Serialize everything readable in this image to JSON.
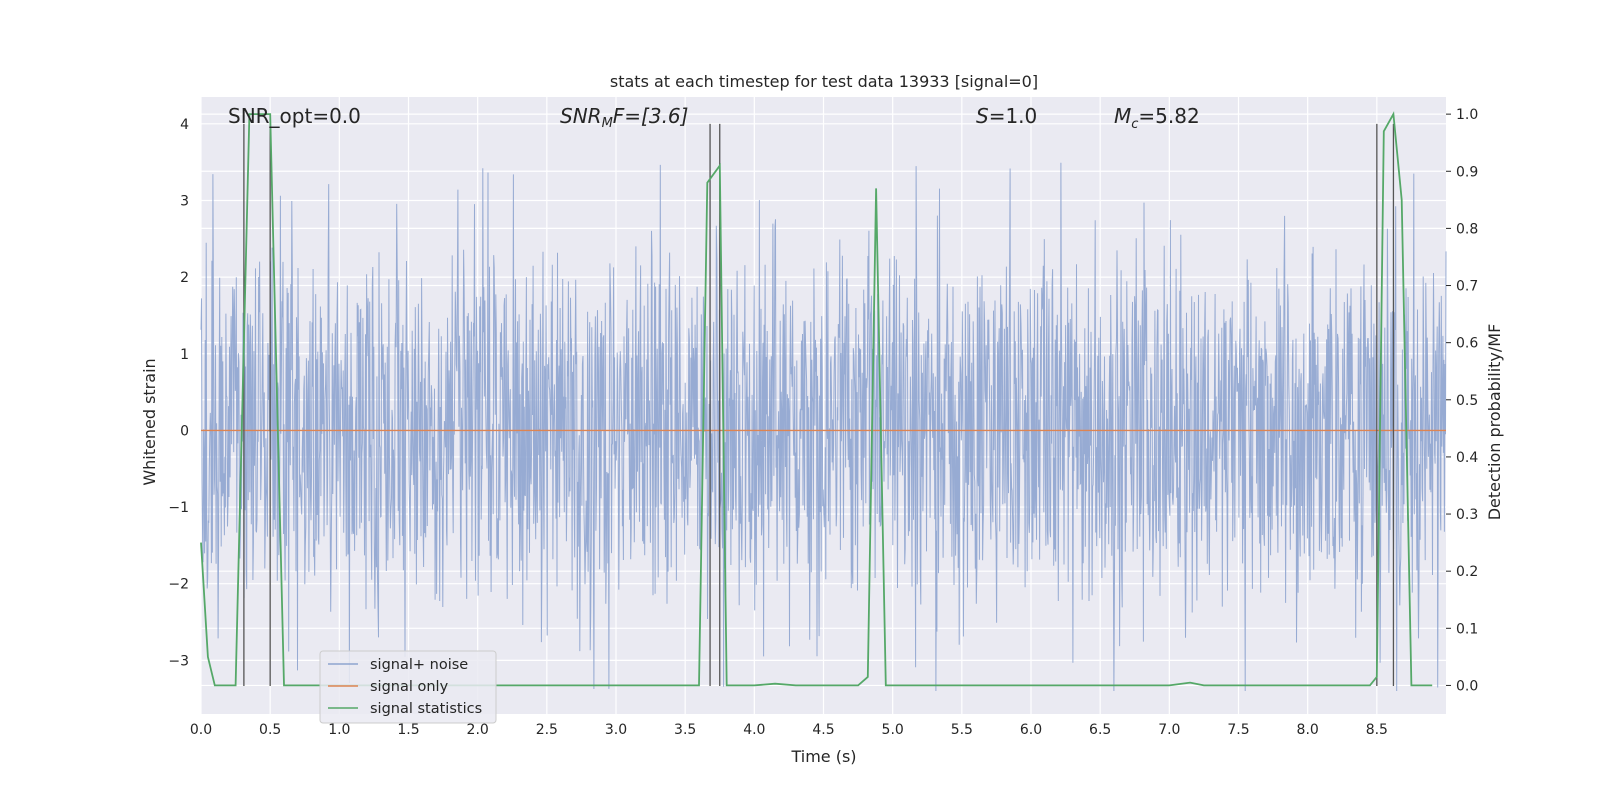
{
  "chart_data": {
    "type": "line",
    "title": "stats at each timestep for test data 13933 [signal=0]",
    "xlabel": "Time (s)",
    "ylabel_left": "Whitened strain",
    "ylabel_right": "Detection probability/MF",
    "xlim": [
      0.0,
      9.0
    ],
    "ylim_left": [
      -3.7,
      4.35
    ],
    "ylim_right": [
      -0.05,
      1.03
    ],
    "xticks": [
      "0.0",
      "0.5",
      "1.0",
      "1.5",
      "2.0",
      "2.5",
      "3.0",
      "3.5",
      "4.0",
      "4.5",
      "5.0",
      "5.5",
      "6.0",
      "6.5",
      "7.0",
      "7.5",
      "8.0",
      "8.5"
    ],
    "xtick_values": [
      0.0,
      0.5,
      1.0,
      1.5,
      2.0,
      2.5,
      3.0,
      3.5,
      4.0,
      4.5,
      5.0,
      5.5,
      6.0,
      6.5,
      7.0,
      7.5,
      8.0,
      8.5
    ],
    "yticks_left": [
      "−3",
      "−2",
      "−1",
      "0",
      "1",
      "2",
      "3",
      "4"
    ],
    "ytick_values_left": [
      -3,
      -2,
      -1,
      0,
      1,
      2,
      3,
      4
    ],
    "yticks_right": [
      "0.0",
      "0.1",
      "0.2",
      "0.3",
      "0.4",
      "0.5",
      "0.6",
      "0.7",
      "0.8",
      "0.9",
      "1.0"
    ],
    "ytick_values_right": [
      0.0,
      0.1,
      0.2,
      0.3,
      0.4,
      0.5,
      0.6,
      0.7,
      0.8,
      0.9,
      1.0
    ],
    "grid": true,
    "legend_position": "lower-left",
    "annotations": {
      "snr_opt": "SNR_opt=0.0",
      "snr_mf_main": "SNR",
      "snr_mf_sub": "M",
      "snr_mf_rest": "F=[3.6]",
      "s_main": "S",
      "s_rest": "=1.0",
      "mc_main": "M",
      "mc_sub": "c",
      "mc_rest": "=5.82"
    },
    "series": [
      {
        "name": "signal+ noise",
        "color": "#8ea4cf",
        "description": "whitened noise time series, approx. amplitude ±2.3 with spikes up to ~4"
      },
      {
        "name": "signal only",
        "color": "#dd8452",
        "x": [
          0.0,
          9.0
        ],
        "y": [
          0.0,
          0.0
        ]
      },
      {
        "name": "signal statistics",
        "color": "#55a868",
        "axis": "right",
        "x": [
          0.0,
          0.05,
          0.1,
          0.25,
          0.35,
          0.4,
          0.5,
          0.6,
          0.65,
          1.0,
          2.0,
          3.0,
          3.6,
          3.66,
          3.75,
          3.8,
          4.0,
          4.15,
          4.3,
          4.75,
          4.82,
          4.88,
          4.95,
          5.2,
          6.0,
          7.0,
          7.15,
          7.25,
          8.0,
          8.45,
          8.5,
          8.55,
          8.62,
          8.68,
          8.75,
          8.9
        ],
        "y": [
          0.25,
          0.05,
          0.0,
          0.0,
          1.0,
          1.0,
          1.0,
          0.0,
          0.0,
          0.0,
          0.0,
          0.0,
          0.0,
          0.88,
          0.91,
          0.0,
          0.0,
          0.003,
          0.0,
          0.0,
          0.015,
          0.87,
          0.0,
          0.0,
          0.0,
          0.0,
          0.005,
          0.0,
          0.0,
          0.0,
          0.015,
          0.97,
          1.0,
          0.85,
          0.0,
          0.0
        ]
      }
    ],
    "vertical_markers": [
      0.31,
      0.5,
      3.68,
      3.75,
      8.5,
      8.62
    ]
  }
}
